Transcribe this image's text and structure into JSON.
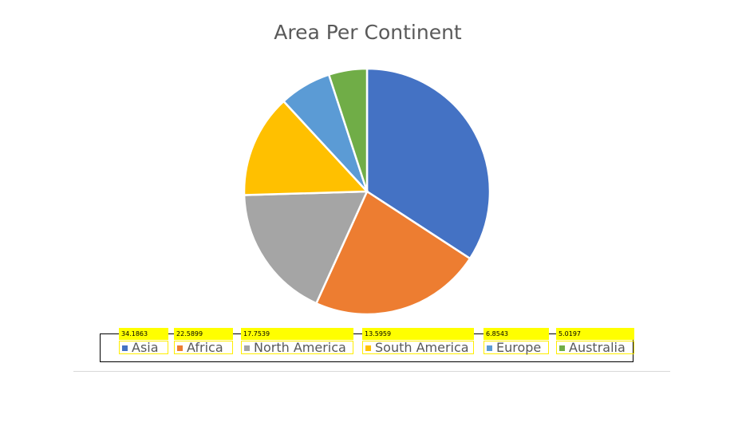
{
  "chart_data": {
    "type": "pie",
    "title": "Area Per Continent",
    "categories": [
      "Asia",
      "Africa",
      "North America",
      "South America",
      "Europe",
      "Australia"
    ],
    "values": [
      34.1863,
      22.5899,
      17.7539,
      13.5959,
      6.8543,
      5.0197
    ],
    "value_labels": [
      "34.1863",
      "22.5899",
      "17.7539",
      "13.5959",
      "6.8543",
      "5.0197"
    ],
    "colors": [
      "#4472c4",
      "#ed7d31",
      "#a5a5a5",
      "#ffc000",
      "#5b9bd5",
      "#70ad47"
    ],
    "legend_position": "bottom"
  }
}
